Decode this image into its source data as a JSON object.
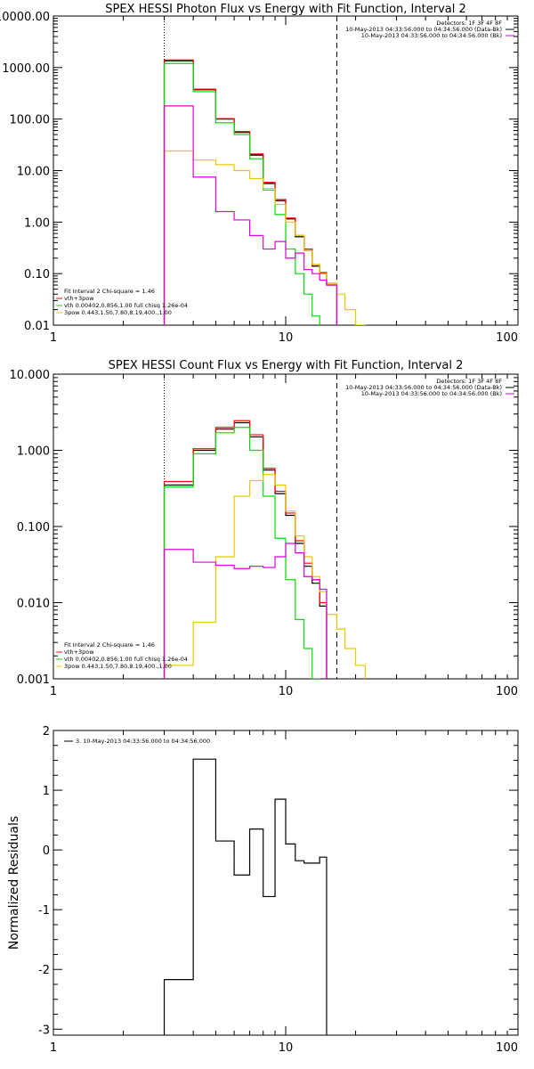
{
  "chart_data": [
    {
      "type": "line",
      "title": "SPEX HESSI Photon Flux vs Energy with Fit Function, Interval 2",
      "x_scale": "log",
      "y_scale": "log",
      "xlim": [
        1,
        100
      ],
      "ylim": [
        0.01,
        10000
      ],
      "x_ticks": [
        "1",
        "10",
        "100"
      ],
      "y_ticks": [
        "0.01",
        "0.10",
        "1.00",
        "10.00",
        "100.00",
        "1000.00",
        "10000.00"
      ],
      "vlines": [
        {
          "x": 3,
          "style": "dotted"
        },
        {
          "x": 16.6,
          "style": "dashed"
        }
      ],
      "legend_top_right": [
        "Detectors: 1F 3F 4F 8F",
        "10-May-2013 04:33:56.000 to 04:34:56.000 (Data-Bk)",
        "10-May-2013 04:33:56.000 to 04:34:56.000 (Bk)"
      ],
      "legend_bottom_left": [
        "Fit Interval 2   Chi-square = 1.46",
        "vth+3pow",
        "vth 0.00402,0.856,1.00   full chisq 1.26e-04",
        "3pow 0.443,1.50,7.80,8.19,400.,1.00"
      ],
      "bin_edges": [
        3.0,
        4.0,
        5.0,
        6.0,
        7.0,
        8.0,
        9.0,
        10.0,
        11.0,
        12.0,
        13.0,
        14.0,
        15.0,
        16.6,
        18.0,
        20.0,
        22.0
      ],
      "series": [
        {
          "color": "#000000",
          "values": [
            1350,
            370,
            100,
            55,
            20,
            5.6,
            2.6,
            1.15,
            0.52,
            0.28,
            0.14,
            0.1,
            0.06,
            null,
            null,
            null
          ]
        },
        {
          "color": "#ff0000",
          "values": [
            1400,
            380,
            102,
            57,
            21,
            5.9,
            2.75,
            1.2,
            0.55,
            0.3,
            0.15,
            0.105,
            0.065,
            null,
            null,
            null
          ]
        },
        {
          "color": "#00dd00",
          "values": [
            1200,
            340,
            85,
            50,
            17,
            4.2,
            1.4,
            0.3,
            0.1,
            0.04,
            0.015,
            0.008,
            null,
            null,
            null,
            null
          ]
        },
        {
          "color": "#e8c800",
          "values": [
            24,
            16,
            13,
            10,
            7,
            4.5,
            2.2,
            1.0,
            0.55,
            0.28,
            0.15,
            0.1,
            0.065,
            0.04,
            0.02,
            0.01
          ]
        },
        {
          "color": "#dd00dd",
          "values": [
            180,
            7.5,
            1.6,
            1.1,
            0.55,
            0.3,
            0.42,
            0.2,
            0.25,
            0.12,
            0.1,
            0.075,
            0.06,
            null,
            null,
            null
          ]
        }
      ]
    },
    {
      "type": "line",
      "title": "SPEX HESSI Count Flux vs Energy with Fit Function, Interval 2",
      "x_scale": "log",
      "y_scale": "log",
      "xlim": [
        1,
        100
      ],
      "ylim": [
        0.001,
        10
      ],
      "x_ticks": [
        "1",
        "10",
        "100"
      ],
      "y_ticks": [
        "0.001",
        "0.010",
        "0.100",
        "1.000",
        "10.000"
      ],
      "vlines": [
        {
          "x": 3,
          "style": "dotted"
        },
        {
          "x": 16.6,
          "style": "dashed"
        }
      ],
      "legend_top_right": [
        "Detectors: 1F 3F 4F 8F",
        "10-May-2013 04:33:56.000 to 04:34:56.000 (Data-Bk)",
        "10-May-2013 04:33:56.000 to 04:34:56.000 (Bk)"
      ],
      "legend_bottom_left": [
        "Fit Interval 2   Chi-square = 1.46",
        "vth+3pow",
        "vth 0.00402,0.856,1.00   full chisq 1.26e-04",
        "3pow 0.443,1.50,7.80,8.19,400.,1.00"
      ],
      "bin_edges": [
        3.0,
        4.0,
        5.0,
        6.0,
        7.0,
        8.0,
        9.0,
        10.0,
        11.0,
        12.0,
        13.0,
        14.0,
        15.0,
        16.6,
        18.0,
        20.0,
        22.0
      ],
      "series": [
        {
          "color": "#000000",
          "values": [
            0.35,
            1.0,
            1.9,
            2.3,
            1.5,
            0.55,
            0.27,
            0.14,
            0.06,
            0.03,
            0.018,
            0.009,
            null,
            null,
            null,
            null
          ]
        },
        {
          "color": "#ff0000",
          "values": [
            0.39,
            1.05,
            2.0,
            2.45,
            1.6,
            0.58,
            0.29,
            0.15,
            0.065,
            0.033,
            0.02,
            0.01,
            null,
            null,
            null,
            null
          ]
        },
        {
          "color": "#00dd00",
          "values": [
            0.33,
            0.9,
            1.7,
            2.0,
            1.0,
            0.25,
            0.07,
            0.02,
            0.006,
            0.0025,
            0.001,
            null,
            null,
            null,
            null,
            null
          ]
        },
        {
          "color": "#e8c800",
          "values": [
            0.0015,
            0.0055,
            0.04,
            0.25,
            0.4,
            0.48,
            0.35,
            0.16,
            0.075,
            0.04,
            0.022,
            0.014,
            0.007,
            0.0045,
            0.0025,
            0.0015
          ]
        },
        {
          "color": "#dd00dd",
          "values": [
            0.05,
            0.034,
            0.031,
            0.028,
            0.03,
            0.029,
            0.04,
            0.06,
            0.045,
            0.022,
            0.02,
            0.015,
            null,
            null,
            null,
            null
          ]
        }
      ]
    },
    {
      "type": "line",
      "title": "",
      "ylabel": "Normalized Residuals",
      "x_scale": "log",
      "y_scale": "linear",
      "xlim": [
        1,
        100
      ],
      "ylim": [
        -3.1,
        2
      ],
      "x_ticks": [
        "1",
        "10",
        "100"
      ],
      "y_ticks": [
        "-3",
        "-2",
        "-1",
        "0",
        "1",
        "2"
      ],
      "legend": "3. 10-May-2013 04:33:56.000 to 04:34:56.000",
      "bin_edges": [
        3.0,
        4.0,
        5.0,
        6.0,
        7.0,
        8.0,
        9.0,
        10.0,
        11.0,
        12.0,
        13.0,
        14.0,
        15.0,
        16.6
      ],
      "series": [
        {
          "color": "#000000",
          "values": [
            -2.17,
            1.52,
            0.15,
            -0.42,
            0.35,
            -0.78,
            0.85,
            0.1,
            -0.18,
            -0.22,
            -0.22,
            -0.12
          ]
        }
      ]
    }
  ]
}
